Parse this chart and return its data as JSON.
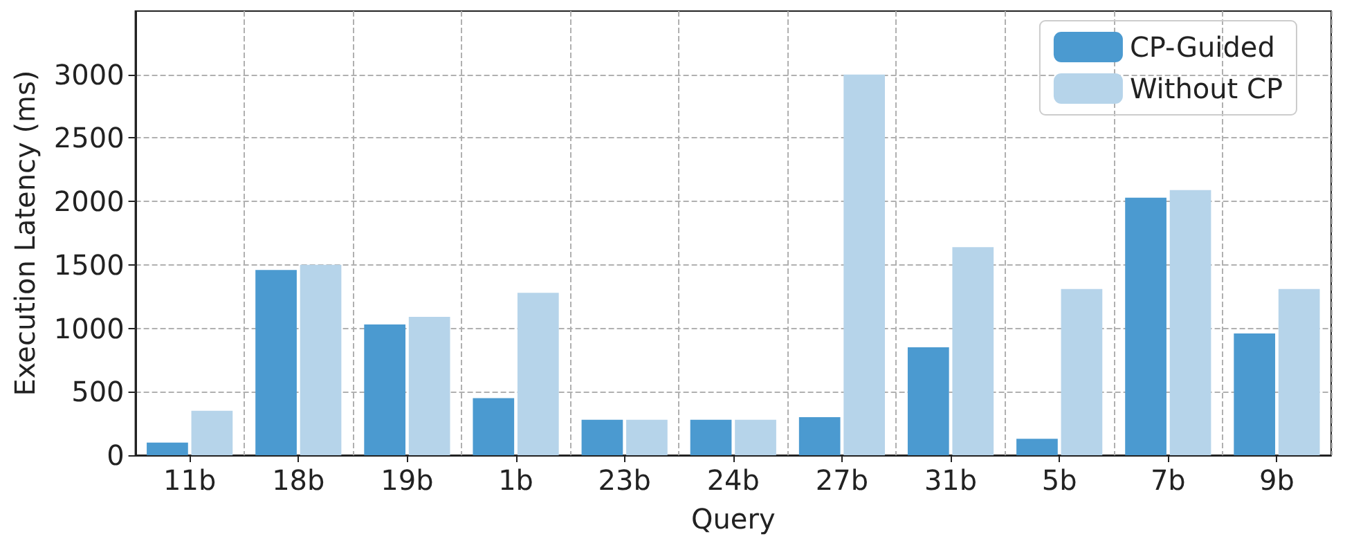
{
  "chart_data": {
    "type": "bar",
    "xlabel": "Query",
    "ylabel": "Execution Latency (ms)",
    "categories": [
      "11b",
      "18b",
      "19b",
      "1b",
      "23b",
      "24b",
      "27b",
      "31b",
      "5b",
      "7b",
      "9b"
    ],
    "series": [
      {
        "name": "CP-Guided",
        "color": "#4b9ad0",
        "values": [
          100,
          1460,
          1030,
          450,
          280,
          280,
          300,
          850,
          130,
          2030,
          960
        ]
      },
      {
        "name": "Without CP",
        "color": "#b6d4ea",
        "values": [
          350,
          1500,
          1090,
          1280,
          280,
          280,
          3000,
          1640,
          1310,
          2090,
          1310
        ]
      }
    ],
    "ylim": [
      0,
      3500
    ],
    "yticks": [
      0,
      500,
      1000,
      1500,
      2000,
      2500,
      3000
    ],
    "grid": true,
    "legend": "top right"
  }
}
